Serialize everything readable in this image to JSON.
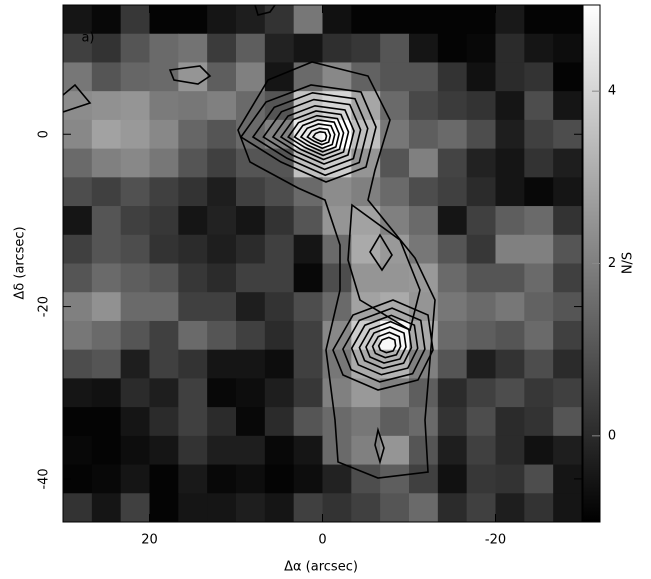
{
  "chart_data": {
    "type": "heatmap",
    "panel_label": "a)",
    "x_label": "Δα (arcsec)",
    "y_label": "Δδ (arcsec)",
    "colorbar_label": "N/S",
    "xlim": [
      30,
      -30
    ],
    "ylim": [
      -45,
      15
    ],
    "xticks": [
      20,
      0,
      -20
    ],
    "yticks": [
      0,
      -20,
      -40
    ],
    "clim": [
      -1,
      5
    ],
    "cticks": [
      0,
      2,
      4
    ],
    "values": [
      [
        -0.5,
        -0.8,
        0.3,
        -0.9,
        -0.9,
        -0.5,
        -0.3,
        0.2,
        1.8,
        -0.6,
        -0.9,
        -0.9,
        -0.9,
        -0.9,
        -0.9,
        -0.4,
        -0.9,
        -0.9
      ],
      [
        0.5,
        0.2,
        1.0,
        1.5,
        1.7,
        0.4,
        1.2,
        -0.2,
        -0.5,
        0.1,
        0.3,
        1.0,
        -0.5,
        -0.9,
        -0.8,
        0.0,
        -0.5,
        -0.7
      ],
      [
        1.8,
        1.0,
        1.4,
        1.5,
        2.5,
        1.2,
        2.0,
        -0.5,
        1.5,
        2.2,
        1.3,
        1.0,
        1.0,
        0.2,
        -0.6,
        0.0,
        0.2,
        -0.9
      ],
      [
        2.3,
        2.4,
        2.5,
        1.9,
        1.8,
        2.0,
        1.5,
        1.0,
        3.6,
        4.0,
        2.9,
        1.5,
        0.7,
        0.4,
        0.2,
        -0.5,
        0.8,
        -0.5
      ],
      [
        2.2,
        2.8,
        2.6,
        2.2,
        1.4,
        1.0,
        1.5,
        2.0,
        4.5,
        5.0,
        3.5,
        1.8,
        1.2,
        1.5,
        0.8,
        -0.3,
        0.5,
        0.8
      ],
      [
        1.5,
        2.0,
        2.2,
        1.8,
        1.0,
        0.5,
        1.0,
        1.0,
        3.5,
        3.8,
        2.5,
        1.0,
        2.0,
        0.6,
        -0.2,
        -0.5,
        0.2,
        -0.3
      ],
      [
        0.8,
        0.5,
        0.9,
        0.5,
        0.2,
        -0.3,
        0.5,
        0.8,
        1.5,
        2.3,
        2.0,
        1.5,
        0.8,
        0.5,
        0.0,
        -0.5,
        -0.8,
        -0.5
      ],
      [
        -0.5,
        1.0,
        0.5,
        0.3,
        -0.5,
        -0.2,
        -0.5,
        0.2,
        1.0,
        2.5,
        2.8,
        2.0,
        1.5,
        -0.5,
        0.5,
        1.2,
        1.5,
        0.2
      ],
      [
        0.5,
        1.0,
        0.8,
        0.2,
        0.0,
        -0.3,
        0.0,
        0.5,
        -0.5,
        1.5,
        3.0,
        2.6,
        1.8,
        1.0,
        0.3,
        2.0,
        2.0,
        1.0
      ],
      [
        1.0,
        1.5,
        1.2,
        1.0,
        0.3,
        0.0,
        0.5,
        0.5,
        -0.8,
        0.8,
        2.5,
        2.5,
        2.6,
        1.5,
        1.0,
        1.0,
        1.5,
        0.5
      ],
      [
        2.0,
        2.4,
        1.5,
        1.5,
        0.5,
        0.5,
        -0.3,
        0.2,
        0.8,
        1.5,
        2.8,
        3.0,
        2.5,
        1.8,
        1.5,
        1.8,
        1.3,
        1.0
      ],
      [
        1.8,
        1.5,
        1.0,
        0.5,
        1.5,
        1.0,
        0.5,
        0.0,
        0.5,
        2.2,
        3.8,
        4.8,
        3.0,
        1.5,
        1.2,
        1.0,
        1.5,
        0.5
      ],
      [
        0.8,
        1.0,
        -0.3,
        0.5,
        0.2,
        -0.5,
        -0.5,
        -0.7,
        0.5,
        1.8,
        3.0,
        3.2,
        2.0,
        1.0,
        -0.3,
        0.2,
        0.8,
        0.0
      ],
      [
        -0.5,
        -0.6,
        0.0,
        -0.3,
        0.5,
        -0.8,
        -0.7,
        -0.3,
        0.3,
        2.0,
        2.6,
        2.0,
        1.2,
        0.0,
        0.5,
        0.8,
        0.3,
        0.5
      ],
      [
        -0.9,
        -0.9,
        -0.5,
        0.0,
        0.5,
        0.0,
        -0.8,
        0.0,
        1.0,
        1.5,
        1.8,
        1.2,
        1.5,
        0.2,
        0.8,
        0.0,
        0.2,
        1.0
      ],
      [
        -0.8,
        -0.9,
        -0.7,
        -0.5,
        0.2,
        -0.3,
        -0.3,
        -0.8,
        -0.5,
        1.5,
        2.0,
        2.5,
        1.0,
        -0.3,
        0.5,
        0.0,
        -0.6,
        -0.3
      ],
      [
        -0.9,
        -0.8,
        -0.5,
        -0.9,
        -0.4,
        -0.8,
        -0.7,
        -0.9,
        -0.7,
        -0.2,
        0.8,
        1.2,
        0.5,
        -0.6,
        0.3,
        0.2,
        0.8,
        -0.5
      ],
      [
        0.2,
        -0.5,
        0.5,
        -0.9,
        -0.5,
        -0.5,
        -0.3,
        -0.5,
        0.5,
        0.2,
        0.5,
        1.0,
        1.5,
        0.0,
        0.5,
        -0.3,
        0.2,
        -0.5
      ]
    ]
  }
}
